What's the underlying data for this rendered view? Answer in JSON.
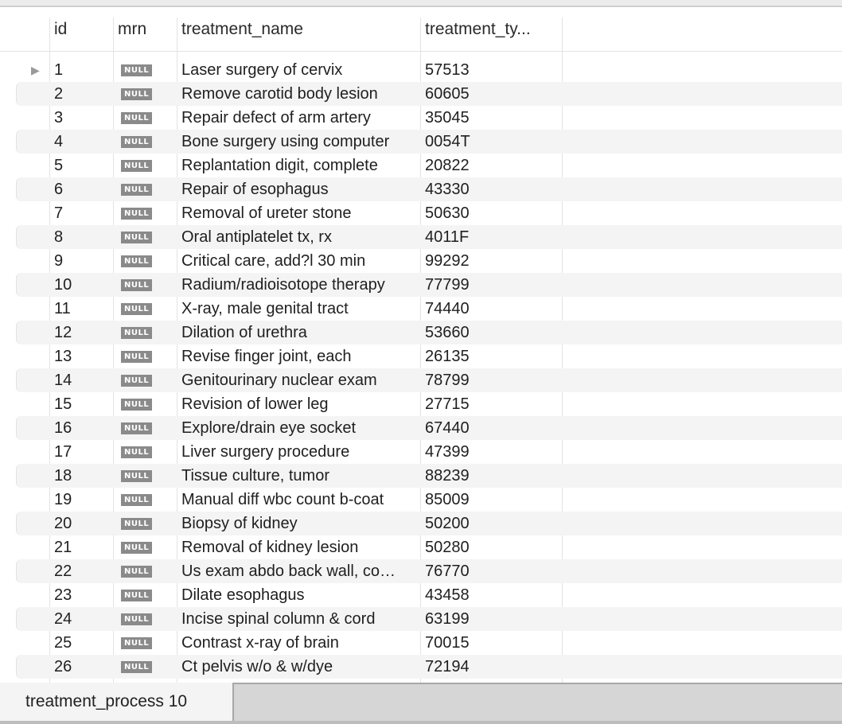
{
  "table": {
    "columns": [
      "id",
      "mrn",
      "treatment_name",
      "treatment_ty..."
    ],
    "null_label": "NULL",
    "rows": [
      {
        "id": "1",
        "mrn": null,
        "treatment_name": "Laser surgery of cervix",
        "treatment_type": "57513"
      },
      {
        "id": "2",
        "mrn": null,
        "treatment_name": "Remove carotid body lesion",
        "treatment_type": "60605"
      },
      {
        "id": "3",
        "mrn": null,
        "treatment_name": "Repair defect of arm artery",
        "treatment_type": "35045"
      },
      {
        "id": "4",
        "mrn": null,
        "treatment_name": "Bone surgery using computer",
        "treatment_type": "0054T"
      },
      {
        "id": "5",
        "mrn": null,
        "treatment_name": "Replantation digit, complete",
        "treatment_type": "20822"
      },
      {
        "id": "6",
        "mrn": null,
        "treatment_name": "Repair of esophagus",
        "treatment_type": "43330"
      },
      {
        "id": "7",
        "mrn": null,
        "treatment_name": "Removal of ureter stone",
        "treatment_type": "50630"
      },
      {
        "id": "8",
        "mrn": null,
        "treatment_name": "Oral antiplatelet tx, rx",
        "treatment_type": "4011F"
      },
      {
        "id": "9",
        "mrn": null,
        "treatment_name": "Critical care, add?l 30 min",
        "treatment_type": "99292"
      },
      {
        "id": "10",
        "mrn": null,
        "treatment_name": "Radium/radioisotope therapy",
        "treatment_type": "77799"
      },
      {
        "id": "11",
        "mrn": null,
        "treatment_name": "X-ray, male genital tract",
        "treatment_type": "74440"
      },
      {
        "id": "12",
        "mrn": null,
        "treatment_name": "Dilation of urethra",
        "treatment_type": "53660"
      },
      {
        "id": "13",
        "mrn": null,
        "treatment_name": "Revise finger joint, each",
        "treatment_type": "26135"
      },
      {
        "id": "14",
        "mrn": null,
        "treatment_name": "Genitourinary nuclear exam",
        "treatment_type": "78799"
      },
      {
        "id": "15",
        "mrn": null,
        "treatment_name": "Revision of lower leg",
        "treatment_type": "27715"
      },
      {
        "id": "16",
        "mrn": null,
        "treatment_name": "Explore/drain eye socket",
        "treatment_type": "67440"
      },
      {
        "id": "17",
        "mrn": null,
        "treatment_name": "Liver surgery procedure",
        "treatment_type": "47399"
      },
      {
        "id": "18",
        "mrn": null,
        "treatment_name": "Tissue culture, tumor",
        "treatment_type": "88239"
      },
      {
        "id": "19",
        "mrn": null,
        "treatment_name": "Manual diff wbc count b-coat",
        "treatment_type": "85009"
      },
      {
        "id": "20",
        "mrn": null,
        "treatment_name": "Biopsy of kidney",
        "treatment_type": "50200"
      },
      {
        "id": "21",
        "mrn": null,
        "treatment_name": "Removal of kidney lesion",
        "treatment_type": "50280"
      },
      {
        "id": "22",
        "mrn": null,
        "treatment_name": "Us exam abdo back wall, co…",
        "treatment_type": "76770"
      },
      {
        "id": "23",
        "mrn": null,
        "treatment_name": "Dilate esophagus",
        "treatment_type": "43458"
      },
      {
        "id": "24",
        "mrn": null,
        "treatment_name": "Incise spinal column & cord",
        "treatment_type": "63199"
      },
      {
        "id": "25",
        "mrn": null,
        "treatment_name": "Contrast x-ray of brain",
        "treatment_type": "70015"
      },
      {
        "id": "26",
        "mrn": null,
        "treatment_name": "Ct pelvis w/o & w/dye",
        "treatment_type": "72194"
      }
    ]
  },
  "tabs": {
    "active": "treatment_process 10"
  },
  "icons": {
    "current_row": "row-pointer-icon"
  }
}
